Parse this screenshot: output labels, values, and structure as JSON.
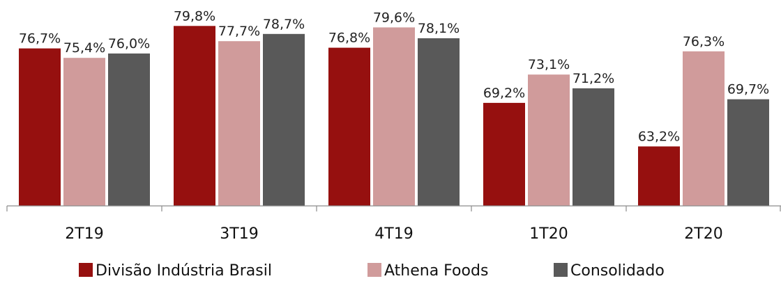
{
  "chart_data": {
    "type": "bar",
    "categories": [
      "2T19",
      "3T19",
      "4T19",
      "1T20",
      "2T20"
    ],
    "series": [
      {
        "name": "Divisão Indústria Brasil",
        "color": "#96100f",
        "values": [
          76.7,
          79.8,
          76.8,
          69.2,
          63.2
        ],
        "labels": [
          "76,7%",
          "79,8%",
          "76,8%",
          "69,2%",
          "63,2%"
        ]
      },
      {
        "name": "Athena Foods",
        "color": "#d09b9b",
        "values": [
          75.4,
          77.7,
          79.6,
          73.1,
          76.3
        ],
        "labels": [
          "75,4%",
          "77,7%",
          "79,6%",
          "73,1%",
          "76,3%"
        ]
      },
      {
        "name": "Consolidado",
        "color": "#595959",
        "values": [
          76.0,
          78.7,
          78.1,
          71.2,
          69.7
        ],
        "labels": [
          "76,0%",
          "78,7%",
          "78,1%",
          "71,2%",
          "69,7%"
        ]
      }
    ],
    "ylim": [
      55,
      80.5
    ],
    "grid": false,
    "legend_position": "bottom"
  }
}
